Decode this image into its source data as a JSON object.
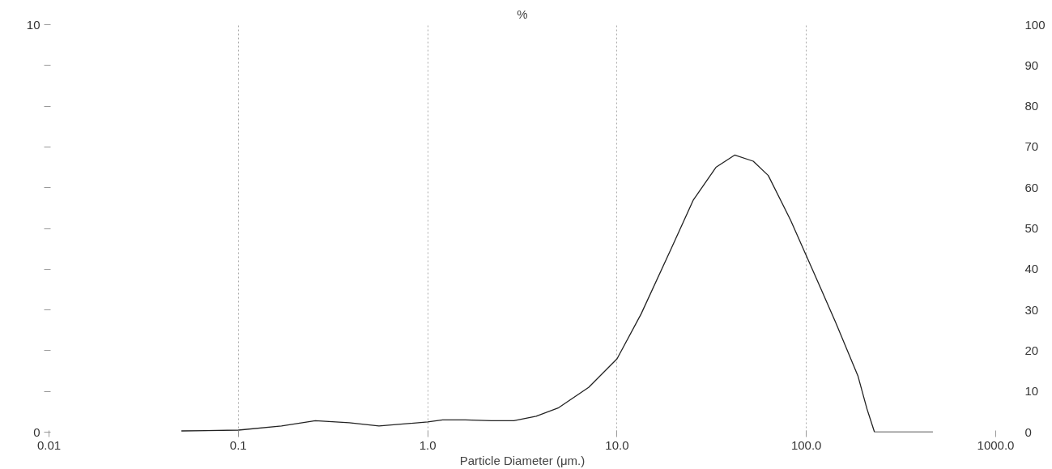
{
  "chart_data": {
    "type": "line",
    "ylabel": "%",
    "xlabel": "Particle Diameter (μm.)",
    "log": "x",
    "grid": "x",
    "marker": "none",
    "line_style": "solid",
    "xlim": [
      0.01,
      1000
    ],
    "xticks": [
      {
        "value": 0.01,
        "label": "0.01"
      },
      {
        "value": 0.1,
        "label": "0.1"
      },
      {
        "value": 1,
        "label": "1.0"
      },
      {
        "value": 10,
        "label": "10.0"
      },
      {
        "value": 100,
        "label": "100.0"
      },
      {
        "value": 1000,
        "label": "1000.0"
      }
    ],
    "ylim": [
      0,
      10
    ],
    "yticks": [
      0,
      {
        "value": 1,
        "label": null
      },
      {
        "value": 2,
        "label": null
      },
      {
        "value": 3,
        "label": null
      },
      {
        "value": 4,
        "label": null
      },
      {
        "value": 5,
        "label": null
      },
      {
        "value": 6,
        "label": null
      },
      {
        "value": 7,
        "label": null
      },
      {
        "value": 8,
        "label": null
      },
      {
        "value": 9,
        "label": null
      },
      10
    ],
    "y2lim": [
      0,
      100
    ],
    "y2ticks": [
      0,
      10,
      20,
      30,
      40,
      50,
      60,
      70,
      80,
      90,
      100
    ],
    "series": [
      {
        "color": "#222222",
        "x": [
          0.05,
          0.1,
          0.169,
          0.255,
          0.385,
          0.553,
          1.0,
          1.2,
          1.58,
          2.17,
          2.85,
          3.74,
          4.92,
          7.08,
          10,
          13.4,
          19.3,
          25.3,
          33.3,
          41.8,
          52.4,
          62.9,
          82.6,
          108.6,
          142.6,
          187.5,
          209,
          229,
          324,
          466
        ],
        "values": [
          0.03,
          0.05,
          0.15,
          0.28,
          0.23,
          0.15,
          0.25,
          0.3,
          0.3,
          0.28,
          0.28,
          0.39,
          0.6,
          1.1,
          1.8,
          2.9,
          4.5,
          5.7,
          6.5,
          6.8,
          6.65,
          6.3,
          5.2,
          3.95,
          2.7,
          1.37,
          0.57,
          0,
          0,
          0
        ]
      }
    ]
  }
}
